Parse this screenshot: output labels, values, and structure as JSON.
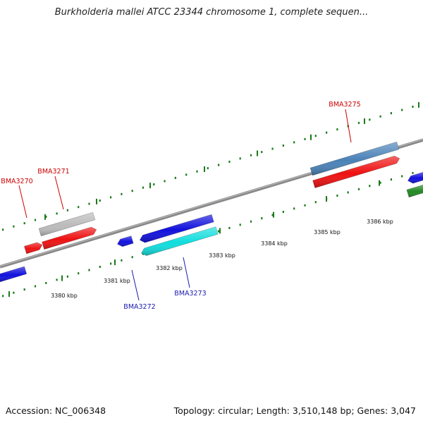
{
  "title": "Burkholderia mallei ATCC 23344 chromosome 1, complete sequen...",
  "ticks": [
    {
      "label": "3380 kbp",
      "kbp": 3380
    },
    {
      "label": "3381 kbp",
      "kbp": 3381
    },
    {
      "label": "3382 kbp",
      "kbp": 3382
    },
    {
      "label": "3383 kbp",
      "kbp": 3383
    },
    {
      "label": "3384 kbp",
      "kbp": 3384
    },
    {
      "label": "3385 kbp",
      "kbp": 3385
    },
    {
      "label": "3386 kbp",
      "kbp": 3386
    }
  ],
  "genes": [
    {
      "name": "BMA3270",
      "strand": "forward",
      "color": "#ee1111",
      "labeled": true
    },
    {
      "name": "BMA3271",
      "strand": "forward",
      "color": "#ee1111",
      "labeled": true
    },
    {
      "name": "BMA3272",
      "strand": "reverse",
      "color": "#1111dd",
      "labeled": true
    },
    {
      "name": "BMA3273",
      "strand": "reverse",
      "color": "#11dddd",
      "labeled": true
    },
    {
      "name": "BMA3275",
      "strand": "forward",
      "color": "#ee1111",
      "labeled": true
    },
    {
      "name": "",
      "strand": "forward",
      "color": "#bbbbbb",
      "labeled": false
    },
    {
      "name": "",
      "strand": "forward",
      "color": "#4a82b8",
      "labeled": false
    },
    {
      "name": "",
      "strand": "reverse",
      "color": "#1111dd",
      "labeled": false
    },
    {
      "name": "",
      "strand": "reverse",
      "color": "#1111dd",
      "labeled": false
    },
    {
      "name": "",
      "strand": "reverse",
      "color": "#1111dd",
      "labeled": false
    },
    {
      "name": "",
      "strand": "reverse",
      "color": "#228822",
      "labeled": false
    }
  ],
  "label_colors": {
    "forward": "#cc0000",
    "reverse": "#1a1ab0"
  },
  "colors": {
    "backbone": "#888888",
    "tick": "#1a7a1a",
    "tick_label": "#111111"
  },
  "footer": {
    "accession": "Accession: NC_006348",
    "summary": "Topology: circular; Length: 3,510,148 bp; Genes: 3,047"
  }
}
